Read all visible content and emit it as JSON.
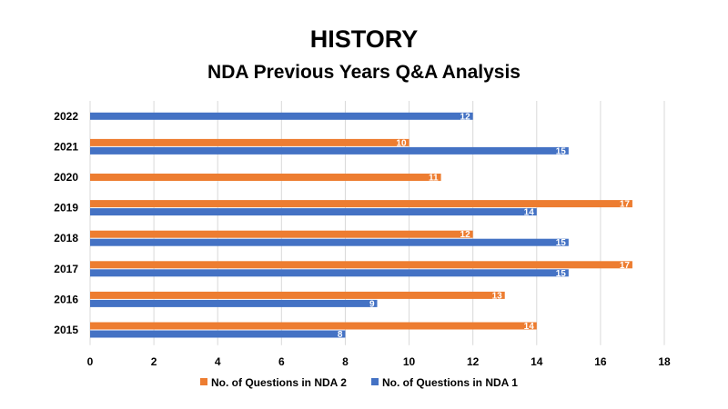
{
  "chart_data": {
    "type": "bar",
    "orientation": "horizontal",
    "title": "HISTORY",
    "subtitle": "NDA Previous Years Q&A Analysis",
    "categories": [
      "2022",
      "2021",
      "2020",
      "2019",
      "2018",
      "2017",
      "2016",
      "2015"
    ],
    "series": [
      {
        "name": "No. of Questions in NDA 2",
        "color": "#ED7D31",
        "values": [
          null,
          10,
          11,
          17,
          12,
          17,
          13,
          14
        ]
      },
      {
        "name": "No. of Questions in NDA 1",
        "color": "#4472C4",
        "values": [
          12,
          15,
          null,
          14,
          15,
          15,
          9,
          8
        ]
      }
    ],
    "xlim": [
      0,
      18
    ],
    "xticks": [
      0,
      2,
      4,
      6,
      8,
      10,
      12,
      14,
      16,
      18
    ],
    "grid": true,
    "data_labels": true,
    "legend_position": "bottom"
  }
}
